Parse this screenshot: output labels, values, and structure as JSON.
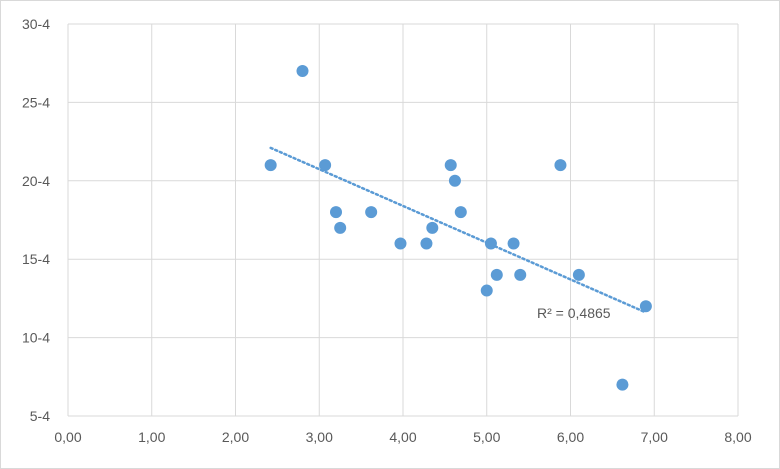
{
  "chart_data": {
    "type": "scatter",
    "title": "",
    "xlabel": "",
    "ylabel": "",
    "xlim": [
      0,
      8
    ],
    "ylim": [
      5,
      30
    ],
    "x_ticks": [
      "0,00",
      "1,00",
      "2,00",
      "3,00",
      "4,00",
      "5,00",
      "6,00",
      "7,00",
      "8,00"
    ],
    "y_ticks": [
      "5-4",
      "10-4",
      "15-4",
      "20-4",
      "25-4",
      "30-4"
    ],
    "grid": true,
    "legend": "none",
    "marker_color": "#5b9bd5",
    "points": [
      {
        "x": 2.42,
        "y": 21
      },
      {
        "x": 2.8,
        "y": 27
      },
      {
        "x": 3.07,
        "y": 21
      },
      {
        "x": 3.2,
        "y": 18
      },
      {
        "x": 3.25,
        "y": 17
      },
      {
        "x": 3.62,
        "y": 18
      },
      {
        "x": 3.97,
        "y": 16
      },
      {
        "x": 4.28,
        "y": 16
      },
      {
        "x": 4.35,
        "y": 17
      },
      {
        "x": 4.57,
        "y": 21
      },
      {
        "x": 4.62,
        "y": 20
      },
      {
        "x": 4.69,
        "y": 18
      },
      {
        "x": 5.0,
        "y": 13
      },
      {
        "x": 5.05,
        "y": 16
      },
      {
        "x": 5.12,
        "y": 14
      },
      {
        "x": 5.32,
        "y": 16
      },
      {
        "x": 5.4,
        "y": 14
      },
      {
        "x": 5.88,
        "y": 21
      },
      {
        "x": 6.1,
        "y": 14
      },
      {
        "x": 6.62,
        "y": 7
      },
      {
        "x": 6.9,
        "y": 12
      }
    ],
    "trendline": {
      "style": "dotted",
      "x_start": 2.42,
      "y_start": 22.1,
      "x_end": 6.9,
      "y_end": 11.6
    },
    "annotations": [
      "R² = 0,4865"
    ]
  }
}
